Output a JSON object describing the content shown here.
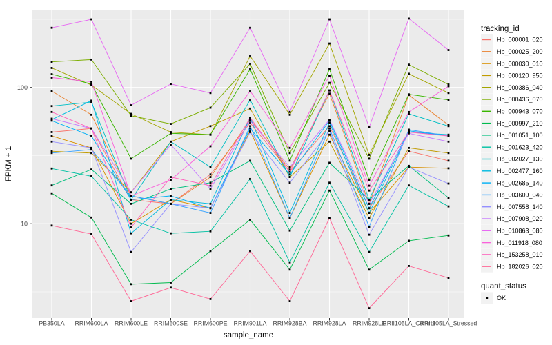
{
  "chart_data": {
    "type": "line",
    "title": "",
    "xlabel": "sample_name",
    "ylabel": "FPKM + 1",
    "y_scale": "log10",
    "ylim": [
      2.03,
      372
    ],
    "y_major_ticks": [
      10,
      100
    ],
    "y_tick_labels": [
      "10",
      "100"
    ],
    "y_minor_gridlines": [
      3.162,
      31.62,
      316.23
    ],
    "grid": true,
    "legend_position": "right",
    "categories": [
      "PB350LA",
      "RRIM600LA",
      "RRIM600LE",
      "RRIM600SE",
      "RRIM600PE",
      "RRIM901LA",
      "RRIM928BA",
      "RRIM928LA",
      "RRIM928LE",
      "RRII105LA_Control",
      "RRII105LA_Stressed"
    ],
    "series": [
      {
        "name": "Hb_000001_020",
        "color": "#F8766D",
        "values": [
          47,
          50,
          15,
          14,
          23,
          55,
          24,
          52,
          13,
          34,
          29
        ]
      },
      {
        "name": "Hb_000025_200",
        "color": "#EA8331",
        "values": [
          94,
          63,
          16,
          14,
          22,
          58,
          25,
          90,
          14,
          88,
          53
        ]
      },
      {
        "name": "Hb_000030_010",
        "color": "#D89000",
        "values": [
          44,
          36,
          10,
          15,
          13,
          48,
          11,
          45,
          12,
          26,
          25.5
        ]
      },
      {
        "name": "Hb_000120_950",
        "color": "#C09B00",
        "values": [
          34,
          33,
          17,
          40,
          52,
          70,
          22,
          40,
          11,
          36,
          33
        ]
      },
      {
        "name": "Hb_000386_040",
        "color": "#A3A500",
        "values": [
          139,
          104,
          64,
          47,
          45,
          170,
          63,
          210,
          32,
          126,
          91
        ]
      },
      {
        "name": "Hb_000436_070",
        "color": "#7CAE00",
        "values": [
          154,
          160,
          62,
          54,
          71,
          149,
          33,
          108,
          30,
          147,
          105
        ]
      },
      {
        "name": "Hb_000943_070",
        "color": "#39B600",
        "values": [
          125,
          106,
          30,
          46,
          45,
          136,
          29,
          136,
          21,
          89,
          81
        ]
      },
      {
        "name": "Hb_000997_210",
        "color": "#00BB4E",
        "values": [
          16.7,
          11.1,
          3.6,
          3.7,
          6.3,
          10.7,
          4.6,
          17.5,
          4.6,
          7.5,
          8.2
        ]
      },
      {
        "name": "Hb_001051_100",
        "color": "#00BF7D",
        "values": [
          19.1,
          25,
          14,
          18,
          20,
          29,
          8.9,
          28,
          15,
          26.6,
          15.5
        ]
      },
      {
        "name": "Hb_001623_420",
        "color": "#00C1A3",
        "values": [
          25.4,
          22.3,
          10.7,
          8.5,
          8.8,
          21.3,
          5.2,
          20,
          6.2,
          19.1,
          13.4
        ]
      },
      {
        "name": "Hb_002027_130",
        "color": "#00BFC4",
        "values": [
          73,
          78,
          15,
          40,
          26,
          81,
          22,
          95,
          15,
          64,
          52
        ]
      },
      {
        "name": "Hb_002477_160",
        "color": "#00BAE0",
        "values": [
          58,
          80,
          8.5,
          15,
          14,
          60,
          12,
          55,
          12,
          47,
          45
        ]
      },
      {
        "name": "Hb_002685_140",
        "color": "#00B0F6",
        "values": [
          57,
          44,
          15,
          16,
          13,
          50,
          23,
          57,
          13,
          48,
          44
        ]
      },
      {
        "name": "Hb_003609_040",
        "color": "#35A2FF",
        "values": [
          33,
          35,
          16,
          14,
          12,
          52,
          11,
          50,
          9.5,
          49,
          44
        ]
      },
      {
        "name": "Hb_007558_140",
        "color": "#9590FF",
        "values": [
          40,
          36,
          6.2,
          14,
          13,
          47,
          20,
          48,
          8.3,
          26,
          19.7
        ]
      },
      {
        "name": "Hb_007908_020",
        "color": "#C77CFF",
        "values": [
          59,
          50,
          17,
          38,
          18,
          57,
          26,
          58,
          14,
          46,
          40
        ]
      },
      {
        "name": "Hb_010863_080",
        "color": "#E76BF3",
        "values": [
          274,
          316,
          74,
          106,
          91,
          274,
          66,
          316,
          51,
          320,
          188
        ]
      },
      {
        "name": "Hb_011918_080",
        "color": "#FA62DB",
        "values": [
          118,
          110,
          16,
          21,
          37,
          94,
          36,
          122,
          19,
          66,
          102
        ]
      },
      {
        "name": "Hb_153258_010",
        "color": "#FF62BC",
        "values": [
          66,
          50,
          9.4,
          22,
          19,
          60,
          24,
          95,
          17.5,
          47,
          44
        ]
      },
      {
        "name": "Hb_182026_020",
        "color": "#FF6A98",
        "values": [
          9.7,
          8.4,
          2.7,
          3.4,
          2.8,
          6.3,
          2.7,
          11,
          2.4,
          4.9,
          4.0
        ]
      }
    ],
    "legend": {
      "tracking_title": "tracking_id",
      "quant_title": "quant_status",
      "quant_items": [
        {
          "label": "OK",
          "marker": "black-square"
        }
      ]
    }
  },
  "colors": {
    "panel_bg": "#EBEBEB",
    "grid": "#FFFFFF",
    "tick_label": "#4D4D4D",
    "axis_title": "#000000",
    "tick_mark": "#333333",
    "point_marker": "#000000",
    "legend_key_bg": "#F2F2F2",
    "legend_text": "#000000"
  }
}
